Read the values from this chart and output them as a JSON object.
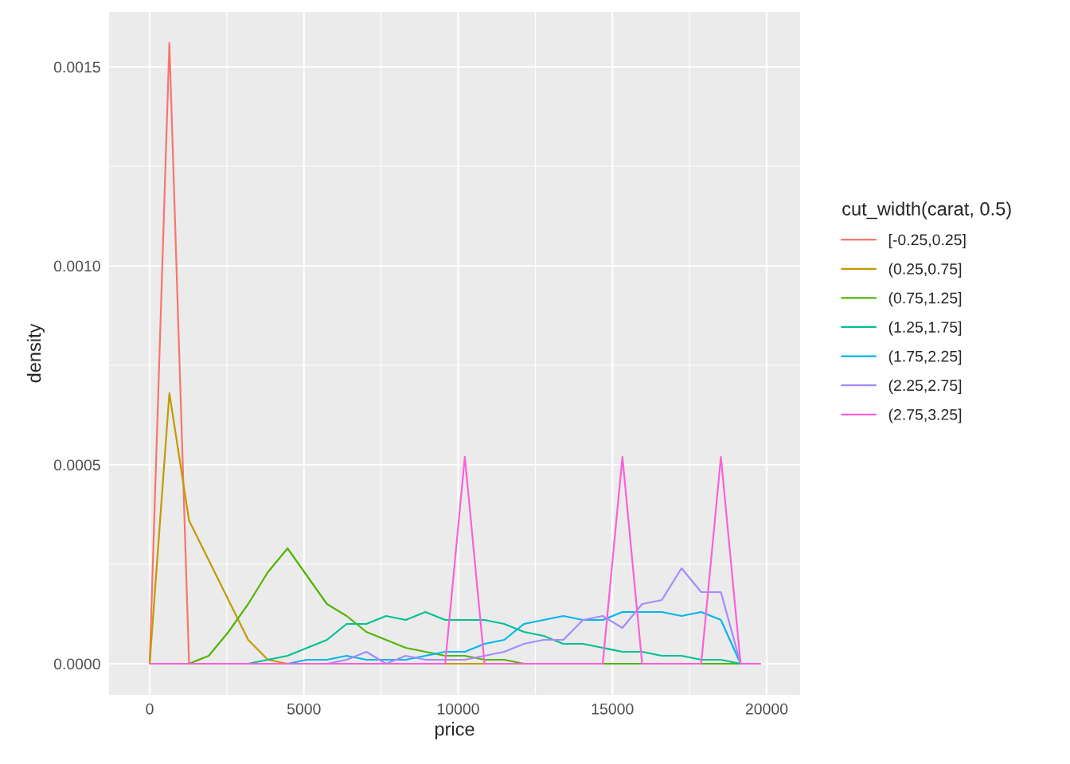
{
  "chart_data": {
    "type": "line",
    "xlabel": "price",
    "ylabel": "density",
    "legend_title": "cut_width(carat, 0.5)",
    "x": [
      0,
      639,
      1277,
      1916,
      2554,
      3193,
      3831,
      4470,
      5108,
      5747,
      6385,
      7024,
      7662,
      8301,
      8939,
      9578,
      10216,
      10855,
      11493,
      12132,
      12770,
      13409,
      14047,
      14686,
      15324,
      15963,
      16601,
      17240,
      17878,
      18517,
      19155,
      19794
    ],
    "series": [
      {
        "name": "[-0.25,0.25]",
        "color": "#f8766d",
        "values": [
          0,
          0.00156,
          0,
          null,
          null,
          null,
          null,
          null,
          null,
          null,
          null,
          null,
          null,
          null,
          null,
          null,
          null,
          null,
          null,
          null,
          null,
          null,
          null,
          null,
          null,
          null,
          null,
          null,
          null,
          null,
          null,
          null
        ]
      },
      {
        "name": "(0.25,0.75]",
        "color": "#c49a00",
        "values": [
          0,
          0.00068,
          0.00036,
          0.00026,
          0.00016,
          6e-05,
          1e-05,
          0,
          null,
          null,
          null,
          null,
          null,
          null,
          null,
          0,
          0,
          0,
          null,
          null,
          null,
          null,
          null,
          null,
          null,
          null,
          null,
          null,
          null,
          null,
          null,
          null
        ]
      },
      {
        "name": "(0.75,1.25]",
        "color": "#53b400",
        "values": [
          null,
          null,
          0,
          2e-05,
          8e-05,
          0.00015,
          0.00023,
          0.00029,
          0.00022,
          0.00015,
          0.00012,
          8e-05,
          6e-05,
          4e-05,
          3e-05,
          2e-05,
          2e-05,
          1e-05,
          1e-05,
          0,
          null,
          null,
          null,
          0,
          0,
          0,
          null,
          null,
          0,
          0,
          0,
          null
        ]
      },
      {
        "name": "(1.25,1.75]",
        "color": "#00c094",
        "values": [
          null,
          null,
          null,
          null,
          null,
          0,
          1e-05,
          2e-05,
          4e-05,
          6e-05,
          0.0001,
          0.0001,
          0.00012,
          0.00011,
          0.00013,
          0.00011,
          0.00011,
          0.00011,
          0.0001,
          8e-05,
          7e-05,
          5e-05,
          5e-05,
          4e-05,
          3e-05,
          3e-05,
          2e-05,
          2e-05,
          1e-05,
          1e-05,
          0,
          null
        ]
      },
      {
        "name": "(1.75,2.25]",
        "color": "#00b6eb",
        "values": [
          null,
          null,
          null,
          null,
          null,
          null,
          null,
          0,
          1e-05,
          1e-05,
          2e-05,
          1e-05,
          1e-05,
          1e-05,
          2e-05,
          3e-05,
          3e-05,
          5e-05,
          6e-05,
          0.0001,
          0.00011,
          0.00012,
          0.00011,
          0.00011,
          0.00013,
          0.00013,
          0.00013,
          0.00012,
          0.00013,
          0.00011,
          0,
          null
        ]
      },
      {
        "name": "(2.25,2.75]",
        "color": "#a58aff",
        "values": [
          null,
          null,
          null,
          null,
          null,
          null,
          null,
          null,
          null,
          0,
          1e-05,
          3e-05,
          0,
          2e-05,
          1e-05,
          1e-05,
          1e-05,
          2e-05,
          3e-05,
          5e-05,
          6e-05,
          6e-05,
          0.00011,
          0.00012,
          9e-05,
          0.00015,
          0.00016,
          0.00024,
          0.00018,
          0.00018,
          0,
          null
        ]
      },
      {
        "name": "(2.75,3.25]",
        "color": "#fb61d7",
        "values": [
          0,
          0,
          0,
          0,
          0,
          0,
          0,
          0,
          0,
          0,
          0,
          0,
          0,
          0,
          0,
          0,
          0.00052,
          0,
          0,
          0,
          0,
          0,
          0,
          0,
          0.00052,
          0,
          0,
          0,
          0,
          0.00052,
          0,
          0
        ]
      }
    ],
    "xlim": [
      -1316,
      21084
    ],
    "ylim": [
      -7.8e-05,
      0.001638
    ],
    "xticks": [
      0,
      5000,
      10000,
      15000,
      20000
    ],
    "yticks": [
      {
        "value": 0,
        "label": "0.0000"
      },
      {
        "value": 0.0005,
        "label": "0.0005"
      },
      {
        "value": 0.001,
        "label": "0.0010"
      },
      {
        "value": 0.0015,
        "label": "0.0015"
      }
    ],
    "grid": true,
    "legend": "right",
    "line_style": "solid",
    "marker": "none"
  }
}
